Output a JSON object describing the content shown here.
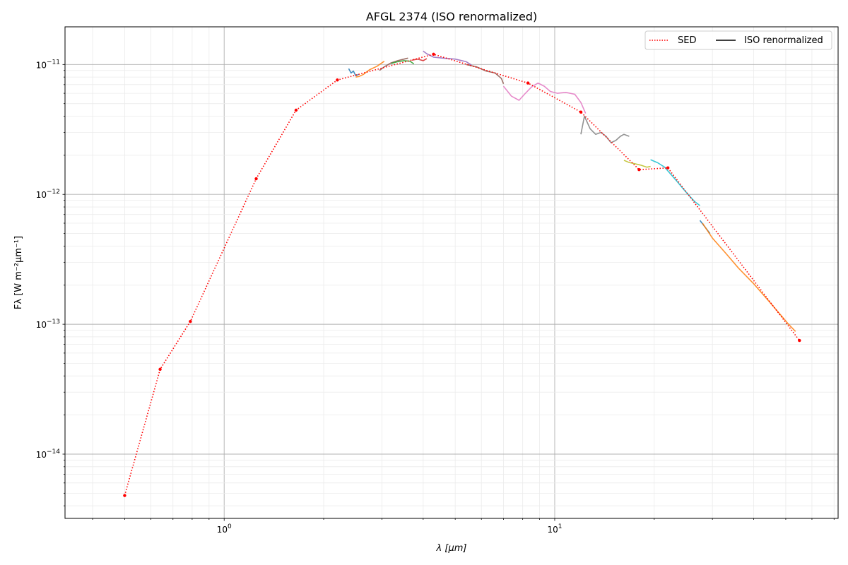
{
  "chart_data": {
    "type": "line",
    "title": "AFGL 2374 (ISO renormalized)",
    "xlabel": "λ [μm]",
    "ylabel": "Fλ [W m⁻²μm⁻¹]",
    "xscale": "log",
    "yscale": "log",
    "xlim": [
      0.33,
      72
    ],
    "ylim": [
      3.2e-15,
      1.95e-11
    ],
    "grid": "on (major and minor)",
    "legend_position": "top-right",
    "legend": [
      "SED",
      "ISO renormalized"
    ],
    "x_tick_labels": [
      {
        "value": 1,
        "base": "10",
        "exp": "0"
      },
      {
        "value": 10,
        "base": "10",
        "exp": "1"
      }
    ],
    "y_tick_labels": [
      {
        "value": 1e-14,
        "base": "10",
        "exp": "−14"
      },
      {
        "value": 1e-13,
        "base": "10",
        "exp": "−13"
      },
      {
        "value": 1e-12,
        "base": "10",
        "exp": "−12"
      },
      {
        "value": 1e-11,
        "base": "10",
        "exp": "−11"
      }
    ],
    "colors": {
      "sed": "#ff0000",
      "iso_legend": "#000000",
      "segments": [
        "#1f77b4",
        "#ff7f0e",
        "#8c564b",
        "#2ca02c",
        "#d62728",
        "#9467bd",
        "#8c564b",
        "#e377c2",
        "#7f7f7f",
        "#bcbd22",
        "#17becf",
        "#1f77b4",
        "#ff7f0e"
      ]
    },
    "series": [
      {
        "name": "SED",
        "style": "dotted",
        "x": [
          0.5,
          0.64,
          0.79,
          1.25,
          1.65,
          2.2,
          4.3,
          8.3,
          12.0,
          18.0,
          22.0,
          55.0
        ],
        "y": [
          4.8e-15,
          4.5e-14,
          1.05e-13,
          1.32e-12,
          4.45e-12,
          7.6e-12,
          1.2e-11,
          7.2e-12,
          4.3e-12,
          1.55e-12,
          1.6e-12,
          7.5e-14
        ]
      },
      {
        "name": "ISO renormalized",
        "segments": [
          {
            "x": [
              2.38,
              2.42,
              2.46,
              2.5,
              2.55
            ],
            "y": [
              9.3e-12,
              8.6e-12,
              8.9e-12,
              8.2e-12,
              8.4e-12
            ]
          },
          {
            "x": [
              2.5,
              2.56,
              2.64,
              2.75,
              2.9,
              3.05
            ],
            "y": [
              8e-12,
              8.1e-12,
              8.4e-12,
              9.1e-12,
              9.7e-12,
              1.06e-11
            ]
          },
          {
            "x": [
              2.95,
              3.05,
              3.2,
              3.35,
              3.5,
              3.6
            ],
            "y": [
              9e-12,
              9.6e-12,
              1.03e-11,
              1.07e-11,
              1.1e-11,
              1.12e-11
            ]
          },
          {
            "x": [
              3.2,
              3.35,
              3.5,
              3.65,
              3.75
            ],
            "y": [
              1.02e-11,
              1.05e-11,
              1.07e-11,
              1.06e-11,
              1.01e-11
            ]
          },
          {
            "x": [
              3.7,
              3.85,
              4.0,
              4.1
            ],
            "y": [
              1.08e-11,
              1.1e-11,
              1.07e-11,
              1.11e-11
            ]
          },
          {
            "x": [
              4.0,
              4.1,
              4.3,
              4.6,
              5.0,
              5.4,
              5.6
            ],
            "y": [
              1.27e-11,
              1.21e-11,
              1.14e-11,
              1.12e-11,
              1.1e-11,
              1.05e-11,
              9.9e-12
            ]
          },
          {
            "x": [
              5.4,
              5.8,
              6.2,
              6.6,
              6.9,
              7.0
            ],
            "y": [
              1e-11,
              9.6e-12,
              8.9e-12,
              8.6e-12,
              7.8e-12,
              7.1e-12
            ]
          },
          {
            "x": [
              7.0,
              7.4,
              7.8,
              8.1,
              8.5,
              8.9,
              9.3,
              9.7,
              10.2,
              10.8,
              11.5,
              12.0,
              12.4
            ],
            "y": [
              6.8e-12,
              5.7e-12,
              5.3e-12,
              5.9e-12,
              6.7e-12,
              7.2e-12,
              6.8e-12,
              6.2e-12,
              6e-12,
              6.1e-12,
              5.9e-12,
              5.1e-12,
              4.2e-12
            ]
          },
          {
            "x": [
              12.0,
              12.3,
              12.8,
              13.3,
              13.8,
              14.3,
              14.8,
              15.3,
              15.8,
              16.2,
              16.8
            ],
            "y": [
              2.9e-12,
              4e-12,
              3.2e-12,
              2.9e-12,
              3e-12,
              2.8e-12,
              2.5e-12,
              2.6e-12,
              2.8e-12,
              2.9e-12,
              2.8e-12
            ]
          },
          {
            "x": [
              16.2,
              16.8,
              17.5,
              18.2,
              19.0,
              19.5
            ],
            "y": [
              1.83e-12,
              1.76e-12,
              1.72e-12,
              1.68e-12,
              1.62e-12,
              1.64e-12
            ]
          },
          {
            "x": [
              19.5,
              20.5,
              21.5,
              22.5,
              23.5,
              24.5,
              25.5,
              26.5,
              27.5
            ],
            "y": [
              1.85e-12,
              1.75e-12,
              1.62e-12,
              1.42e-12,
              1.25e-12,
              1.1e-12,
              9.8e-13,
              8.8e-13,
              8.2e-13
            ]
          },
          {
            "x": [
              27.5,
              28.5,
              29.5
            ],
            "y": [
              6.3e-13,
              5.6e-13,
              5e-13
            ]
          },
          {
            "x": [
              28.0,
              30.0,
              33.0,
              36.0,
              40.0,
              44.0,
              48.0,
              51.0,
              53.5
            ],
            "y": [
              6e-13,
              4.6e-13,
              3.5e-13,
              2.7e-13,
              2.05e-13,
              1.55e-13,
              1.2e-13,
              1e-13,
              8.8e-14
            ]
          }
        ]
      }
    ]
  }
}
